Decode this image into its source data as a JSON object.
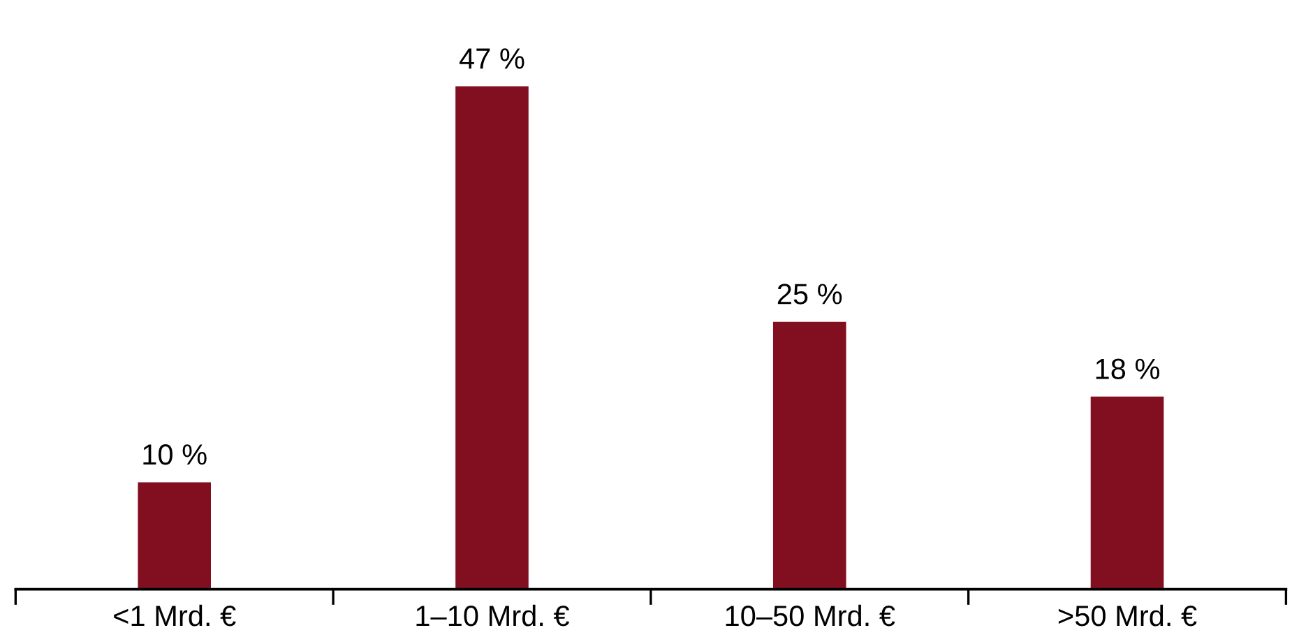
{
  "chart_data": {
    "type": "bar",
    "categories": [
      "<1 Mrd. €",
      "1–10 Mrd. €",
      "10–50 Mrd. €",
      ">50 Mrd. €"
    ],
    "values": [
      10,
      47,
      25,
      18
    ],
    "value_labels": [
      "10 %",
      "47 %",
      "25 %",
      "18 %"
    ],
    "color": "#820f20",
    "grid": false,
    "legend": false
  }
}
